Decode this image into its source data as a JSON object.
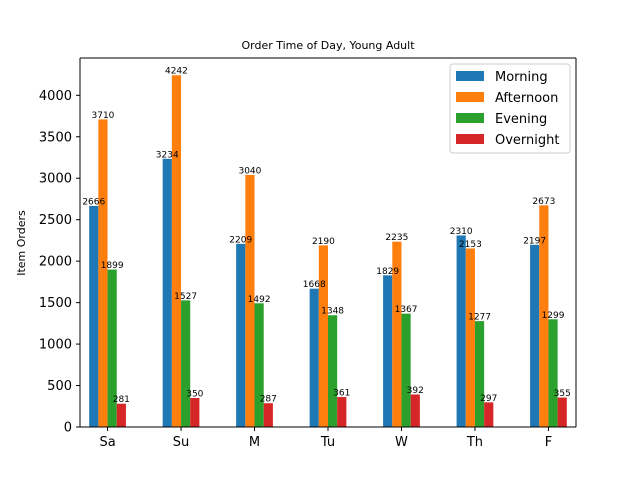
{
  "chart_data": {
    "type": "bar",
    "title": "Order Time of Day, Young Adult",
    "xlabel": "",
    "ylabel": "Item Orders",
    "categories": [
      "Sa",
      "Su",
      "M",
      "Tu",
      "W",
      "Th",
      "F"
    ],
    "series": [
      {
        "name": "Morning",
        "color": "#1f77b4",
        "values": [
          2666,
          3234,
          2209,
          1668,
          1829,
          2310,
          2197
        ]
      },
      {
        "name": "Afternoon",
        "color": "#ff7f0e",
        "values": [
          3710,
          4242,
          3040,
          2190,
          2235,
          2153,
          2673
        ]
      },
      {
        "name": "Evening",
        "color": "#2ca02c",
        "values": [
          1899,
          1527,
          1492,
          1348,
          1367,
          1277,
          1299
        ]
      },
      {
        "name": "Overnight",
        "color": "#d62728",
        "values": [
          281,
          350,
          287,
          361,
          392,
          297,
          355
        ]
      }
    ],
    "ylim": [
      0,
      4450
    ],
    "yticks": [
      0,
      500,
      1000,
      1500,
      2000,
      2500,
      3000,
      3500,
      4000
    ],
    "grid": false,
    "legend_position": "top-right",
    "data_labels": true
  }
}
